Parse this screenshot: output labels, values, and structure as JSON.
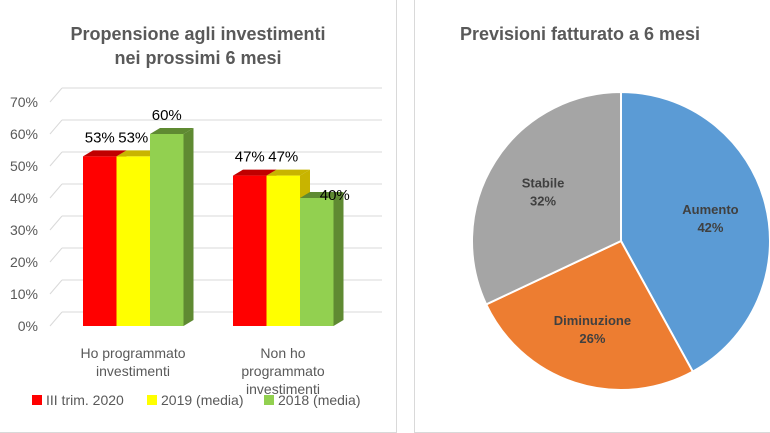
{
  "chart_data": [
    {
      "type": "bar",
      "title_line1": "Propensione agli investimenti",
      "title_line2": "nei prossimi 6 mesi",
      "categories": [
        "Ho programmato investimenti",
        "Non ho programmato investimenti"
      ],
      "category_lines": [
        [
          "Ho programmato",
          "investimenti"
        ],
        [
          "Non ho",
          "programmato",
          "investimenti"
        ]
      ],
      "series": [
        {
          "name": "III trim. 2020",
          "values": [
            53,
            47
          ],
          "color": "#ff0000",
          "side": "#c00000"
        },
        {
          "name": "2019 (media)",
          "values": [
            53,
            47
          ],
          "color": "#ffff00",
          "side": "#c8b400"
        },
        {
          "name": "2018 (media)",
          "values": [
            60,
            40
          ],
          "color": "#92d050",
          "side": "#5f8a32"
        }
      ],
      "ylim": [
        0,
        70
      ],
      "yticks": [
        "0%",
        "10%",
        "20%",
        "30%",
        "40%",
        "50%",
        "60%",
        "70%"
      ],
      "grid": true,
      "legend": "bottom"
    },
    {
      "type": "pie",
      "title": "Previsioni fatturato a 6 mesi",
      "slices": [
        {
          "label": "Aumento",
          "value": 42,
          "text": "42%",
          "color": "#5b9bd5"
        },
        {
          "label": "Diminuzione",
          "value": 26,
          "text": "26%",
          "color": "#ed7d31"
        },
        {
          "label": "Stabile",
          "value": 32,
          "text": "32%",
          "color": "#a5a5a5"
        }
      ]
    }
  ]
}
